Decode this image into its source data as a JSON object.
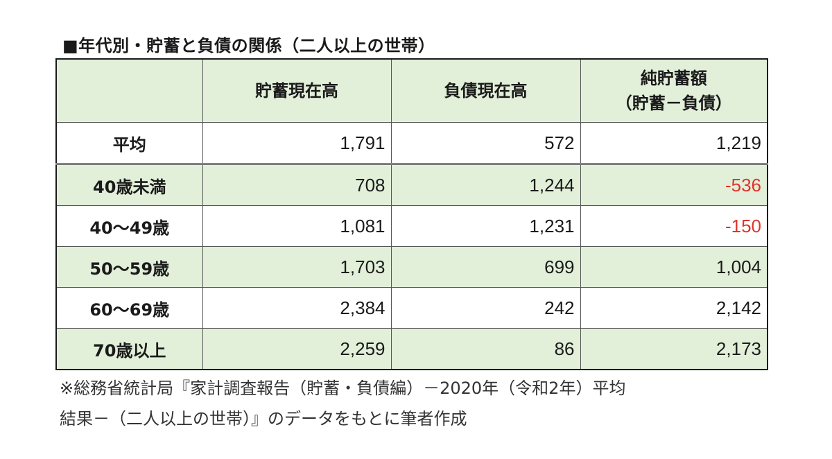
{
  "title": "■年代別・貯蓄と負債の関係（二人以上の世帯）",
  "table": {
    "headers": [
      "",
      "貯蓄現在高",
      "負債現在高",
      "純貯蓄額",
      "（貯蓄－負債）"
    ],
    "rows": [
      {
        "label": "平均",
        "savings": "1,791",
        "debt": "572",
        "net": "1,219"
      },
      {
        "label": "40歳未満",
        "savings": "708",
        "debt": "1,244",
        "net": "-536"
      },
      {
        "label": "40～49歳",
        "savings": "1,081",
        "debt": "1,231",
        "net": "-150"
      },
      {
        "label": "50～59歳",
        "savings": "1,703",
        "debt": "699",
        "net": "1,004"
      },
      {
        "label": "60～69歳",
        "savings": "2,384",
        "debt": "242",
        "net": "2,142"
      },
      {
        "label": "70歳以上",
        "savings": "2,259",
        "debt": "86",
        "net": "2,173"
      }
    ]
  },
  "note": {
    "line1": "※総務省統計局『家計調査報告（貯蓄・負債編）－2020年（令和2年）平均",
    "line2": "結果－（二人以上の世帯）』のデータをもとに筆者作成"
  },
  "colors": {
    "shade": "#e2efd9",
    "negative": "#e0342a"
  }
}
